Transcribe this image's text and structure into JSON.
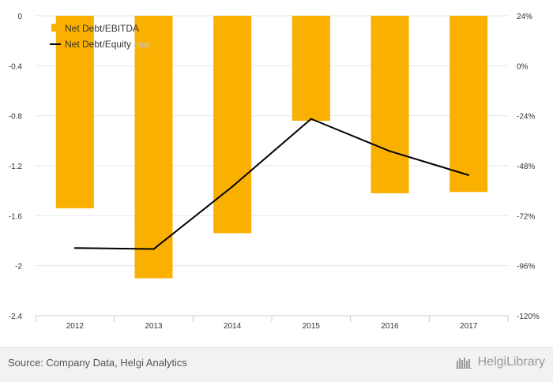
{
  "chart_data": {
    "type": "bar",
    "categories": [
      "2012",
      "2013",
      "2014",
      "2015",
      "2016",
      "2017"
    ],
    "series": [
      {
        "name": "Net Debt/EBITDA",
        "type": "bar",
        "axis": "left",
        "color": "#f9b000",
        "values": [
          -1.54,
          -2.1,
          -1.74,
          -0.84,
          -1.42,
          -1.41
        ]
      },
      {
        "name": "Net Debt/Equity",
        "type": "line",
        "axis": "right",
        "color": "#000000",
        "values": [
          -87.5,
          -88.0,
          -58.0,
          -25.5,
          -41.0,
          -52.5
        ]
      }
    ],
    "legend": {
      "position": "top-left",
      "items": [
        {
          "label": "Net Debt/EBITDA",
          "color": "#f9b000"
        },
        {
          "label": "Net Debt/Equity",
          "suffix": "(rhs)",
          "color": "#000000"
        }
      ]
    },
    "left_axis": {
      "ticks": [
        "0",
        "-0.4",
        "-0.8",
        "-1.2",
        "-1.6",
        "-2",
        "-2.4"
      ],
      "ylim": [
        -2.4,
        0
      ]
    },
    "right_axis": {
      "ticks": [
        "24%",
        "0%",
        "-24%",
        "-48%",
        "-72%",
        "-96%",
        "-120%"
      ],
      "ylim": [
        -120,
        24
      ]
    },
    "grid": true
  },
  "footer": {
    "source": "Source: Company Data, Helgi Analytics",
    "brand": "HelgiLibrary"
  }
}
